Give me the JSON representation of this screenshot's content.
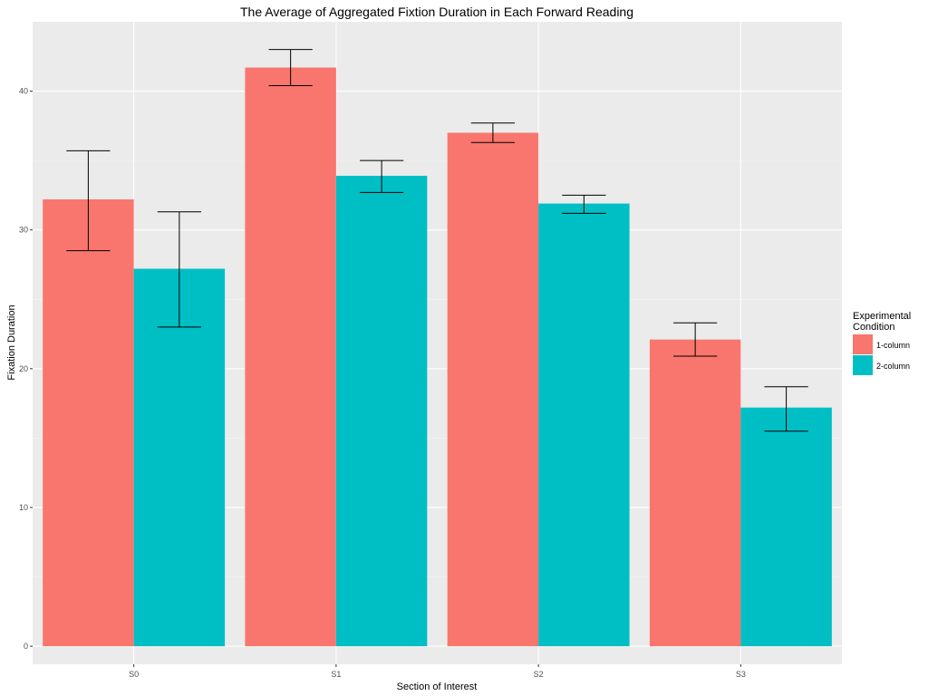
{
  "chart_data": {
    "type": "bar",
    "title": "The Average of Aggregated Fixtion Duration in Each Forward Reading",
    "xlabel": "Section of Interest",
    "ylabel": "Fixation Duration",
    "categories": [
      "S0",
      "S1",
      "S2",
      "S3"
    ],
    "yticks": [
      "0",
      "10",
      "20",
      "30",
      "40"
    ],
    "ylim": [
      -1.3,
      45
    ],
    "grid": true,
    "legend": {
      "title_lines": [
        "Experimental",
        "Condition"
      ],
      "placement": "right"
    },
    "series": [
      {
        "name": "1-column",
        "color": "#f8766d",
        "values": [
          32.2,
          41.7,
          37.0,
          22.1
        ],
        "error_low": [
          28.5,
          40.4,
          36.3,
          20.9
        ],
        "error_high": [
          35.7,
          43.0,
          37.7,
          23.3
        ]
      },
      {
        "name": "2-column",
        "color": "#00bfc4",
        "values": [
          27.2,
          33.9,
          31.9,
          17.2
        ],
        "error_low": [
          23.0,
          32.7,
          31.2,
          15.5
        ],
        "error_high": [
          31.3,
          35.0,
          32.5,
          18.7
        ]
      }
    ]
  }
}
